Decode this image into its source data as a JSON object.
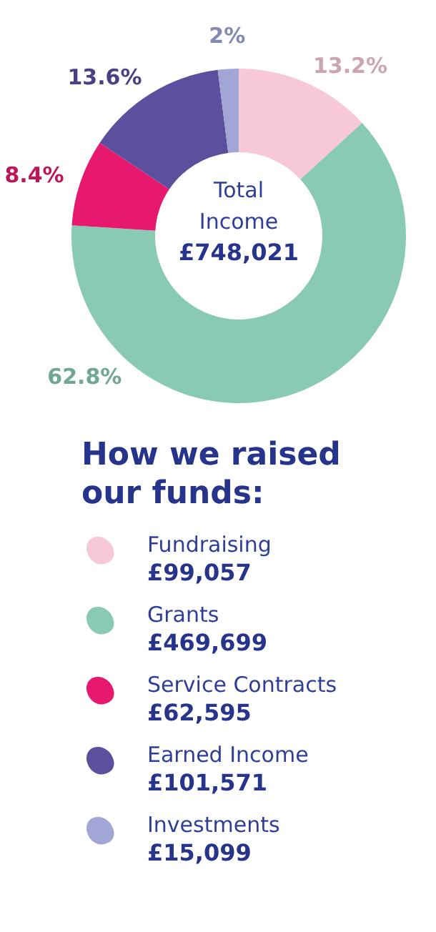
{
  "chart_data": {
    "type": "donut",
    "title": "How we raised our funds:",
    "categories": [
      "Fundraising",
      "Grants",
      "Service Contracts",
      "Earned Income",
      "Investments"
    ],
    "values": [
      13.2,
      62.8,
      8.4,
      13.6,
      2
    ],
    "value_labels": [
      "13.2%",
      "62.8%",
      "8.4%",
      "13.6%",
      "2%"
    ],
    "colors": [
      "#f7c9d6",
      "#88cbb2",
      "#e6196e",
      "#5b4f9e",
      "#a2a6d6"
    ],
    "annotations": [
      "Total Income",
      "£748,021",
      "£99,057",
      "£469,699",
      "£62,595",
      "£101,571",
      "£15,099"
    ],
    "legend": "bottom"
  }
}
